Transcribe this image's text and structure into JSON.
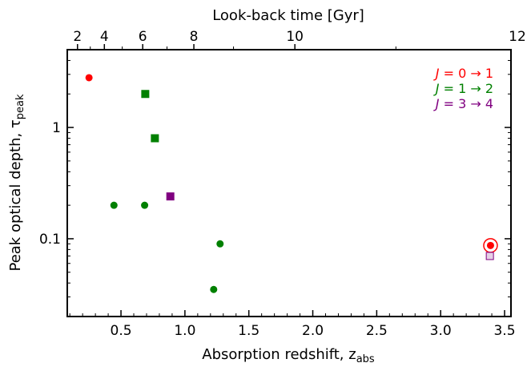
{
  "chart_data": {
    "type": "scatter",
    "title": "",
    "xlabel": "Absorption redshift, z",
    "xlabel_sub": "abs",
    "ylabel": "Peak optical depth, τ",
    "ylabel_sub": "peak",
    "top_xlabel": "Look-back time [Gyr]",
    "xlim": [
      0.08,
      3.55
    ],
    "ylim": [
      0.02,
      5.0
    ],
    "yscale": "log",
    "x_ticks": [
      0.5,
      1.0,
      1.5,
      2.0,
      2.5,
      3.0,
      3.5
    ],
    "x_tick_labels": [
      "0.5",
      "1.0",
      "1.5",
      "2.0",
      "2.5",
      "3.0",
      "3.5"
    ],
    "y_ticks": [
      0.1,
      1
    ],
    "y_tick_labels": [
      "0.1",
      "1"
    ],
    "top_ticks": [
      {
        "z": 0.16,
        "label": "2"
      },
      {
        "z": 0.37,
        "label": "4"
      },
      {
        "z": 0.67,
        "label": "6"
      },
      {
        "z": 1.07,
        "label": "8"
      },
      {
        "z": 1.86,
        "label": "10"
      },
      {
        "z": 3.6,
        "label": "12"
      }
    ],
    "top_minor_ticks": [
      0.26,
      0.51,
      0.86,
      1.38,
      2.65
    ],
    "legend_placement": "top-right",
    "legend": [
      {
        "j": "J",
        "eq": " = 0 → 1",
        "color": "#ff0000"
      },
      {
        "j": "J",
        "eq": " = 1 → 2",
        "color": "#008000"
      },
      {
        "j": "J",
        "eq": " = 3 → 4",
        "color": "#800080"
      }
    ],
    "series": [
      {
        "transition": "0-1",
        "color": "#ff0000",
        "points": [
          {
            "x": 0.25,
            "y": 2.8,
            "marker": "circle"
          },
          {
            "x": 3.39,
            "y": 0.087,
            "marker": "circle",
            "ring": true
          }
        ]
      },
      {
        "transition": "1-2",
        "color": "#008000",
        "points": [
          {
            "x": 0.445,
            "y": 0.2,
            "marker": "circle"
          },
          {
            "x": 0.685,
            "y": 0.2,
            "marker": "circle"
          },
          {
            "x": 1.275,
            "y": 0.09,
            "marker": "circle"
          },
          {
            "x": 1.225,
            "y": 0.035,
            "marker": "circle"
          },
          {
            "x": 0.69,
            "y": 2.0,
            "marker": "square"
          },
          {
            "x": 0.765,
            "y": 0.8,
            "marker": "square"
          }
        ]
      },
      {
        "transition": "3-4",
        "color": "#800080",
        "points": [
          {
            "x": 0.886,
            "y": 0.24,
            "marker": "square"
          },
          {
            "x": 3.385,
            "y": 0.07,
            "marker": "square",
            "fill": "#e6d0e6"
          }
        ]
      }
    ]
  }
}
